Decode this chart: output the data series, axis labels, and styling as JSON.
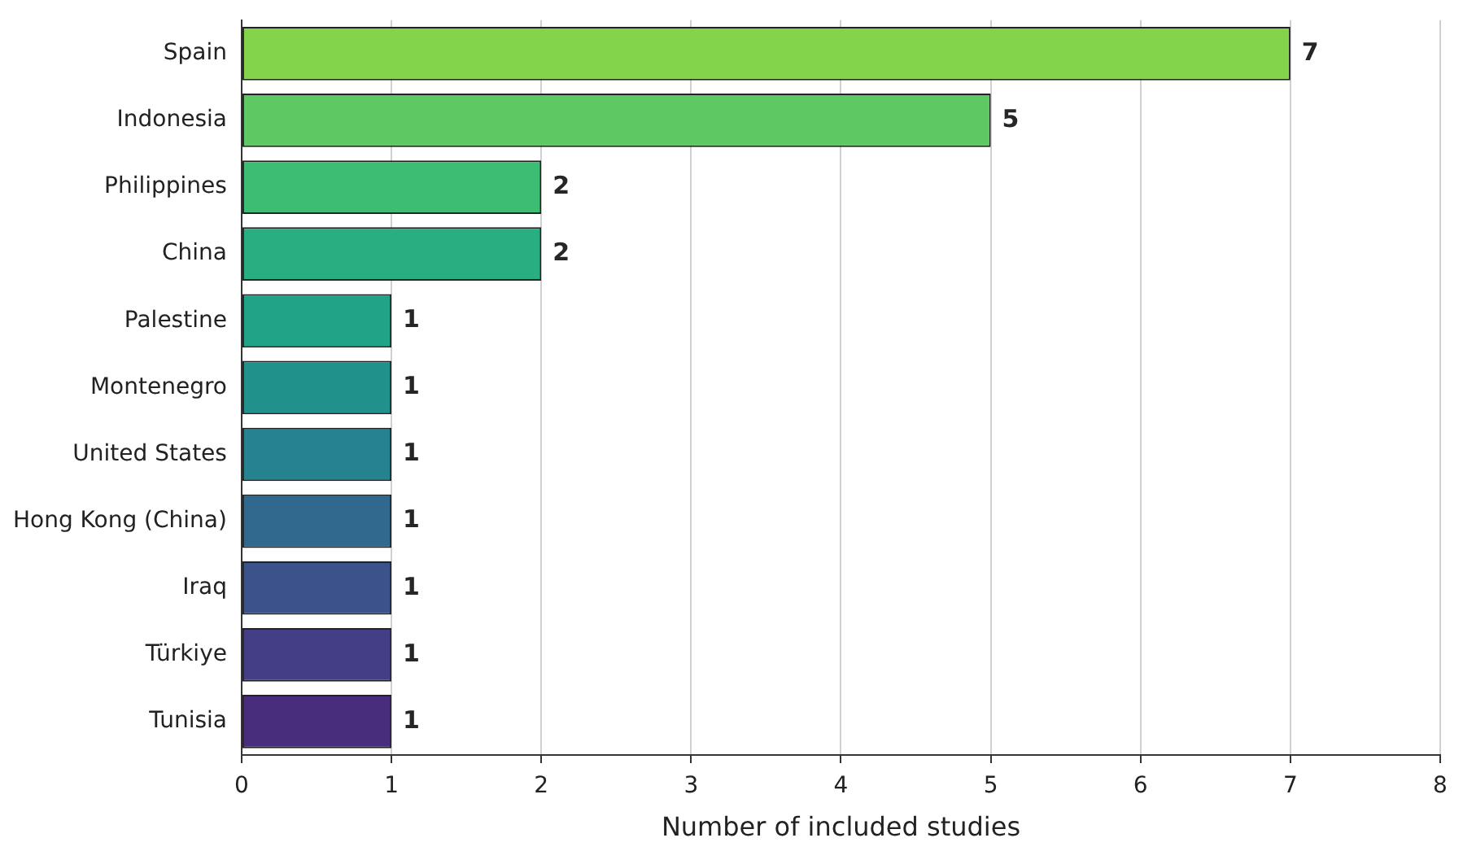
{
  "chart_data": {
    "type": "bar",
    "orientation": "horizontal",
    "xlabel": "Number of included studies",
    "categories": [
      "Spain",
      "Indonesia",
      "Philippines",
      "China",
      "Palestine",
      "Montenegro",
      "United States",
      "Hong Kong (China)",
      "Iraq",
      "Türkiye",
      "Tunisia"
    ],
    "values": [
      7,
      5,
      2,
      2,
      1,
      1,
      1,
      1,
      1,
      1,
      1
    ],
    "colors": [
      "#84d44b",
      "#5ec962",
      "#3dbc74",
      "#28ae80",
      "#20a386",
      "#21918c",
      "#26828e",
      "#31688e",
      "#3b528b",
      "#433e85",
      "#472d7b"
    ],
    "xlim": [
      0,
      8
    ],
    "xticks": [
      0,
      1,
      2,
      3,
      4,
      5,
      6,
      7,
      8
    ],
    "grid": "x",
    "data_labels": true,
    "legend": false
  }
}
